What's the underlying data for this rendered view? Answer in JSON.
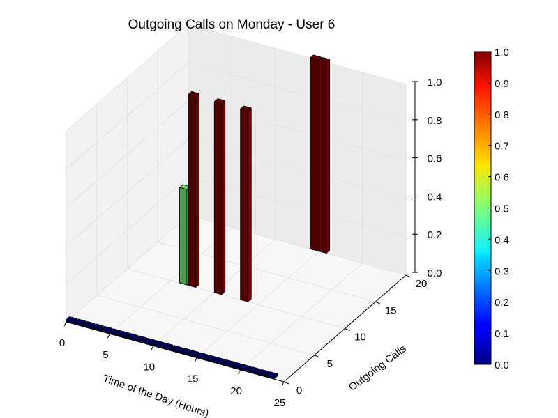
{
  "chart_data": {
    "type": "bar3d",
    "title": "Outgoing Calls on Monday - User 6",
    "xlabel": "Time of the Day (Hours)",
    "ylabel": "Outgoing Calls",
    "zlabel": "",
    "xlim": [
      0,
      25
    ],
    "ylim": [
      0,
      20
    ],
    "zlim": [
      0,
      1.0
    ],
    "x_ticks": [
      "0",
      "5",
      "10",
      "15",
      "20",
      "25"
    ],
    "y_ticks": [
      "0",
      "5",
      "10",
      "15",
      "20"
    ],
    "z_ticks": [
      "0.0",
      "0.2",
      "0.4",
      "0.6",
      "0.8",
      "1.0"
    ],
    "colormap": "jet",
    "colorbar_ticks": [
      "0.0",
      "0.1",
      "0.2",
      "0.3",
      "0.4",
      "0.5",
      "0.6",
      "0.7",
      "0.8",
      "0.9",
      "1.0"
    ],
    "grid": true,
    "bars": [
      {
        "hour": 0,
        "calls": 0,
        "value": 0.0
      },
      {
        "hour": 1,
        "calls": 0,
        "value": 0.0
      },
      {
        "hour": 2,
        "calls": 0,
        "value": 0.0
      },
      {
        "hour": 3,
        "calls": 0,
        "value": 0.0
      },
      {
        "hour": 4,
        "calls": 0,
        "value": 0.0
      },
      {
        "hour": 5,
        "calls": 0,
        "value": 0.0
      },
      {
        "hour": 6,
        "calls": 0,
        "value": 0.0
      },
      {
        "hour": 7,
        "calls": 0,
        "value": 0.0
      },
      {
        "hour": 8,
        "calls": 0,
        "value": 0.0
      },
      {
        "hour": 9,
        "calls": 0,
        "value": 0.0
      },
      {
        "hour": 10,
        "calls": 0,
        "value": 0.0
      },
      {
        "hour": 11,
        "calls": 0,
        "value": 0.0
      },
      {
        "hour": 12,
        "calls": 0,
        "value": 0.0
      },
      {
        "hour": 13,
        "calls": 0,
        "value": 0.0
      },
      {
        "hour": 14,
        "calls": 0,
        "value": 0.0
      },
      {
        "hour": 15,
        "calls": 0,
        "value": 0.0
      },
      {
        "hour": 16,
        "calls": 0,
        "value": 0.0
      },
      {
        "hour": 17,
        "calls": 0,
        "value": 0.0
      },
      {
        "hour": 18,
        "calls": 0,
        "value": 0.0
      },
      {
        "hour": 19,
        "calls": 0,
        "value": 0.0
      },
      {
        "hour": 20,
        "calls": 0,
        "value": 0.0
      },
      {
        "hour": 21,
        "calls": 0,
        "value": 0.0
      },
      {
        "hour": 22,
        "calls": 0,
        "value": 0.0
      },
      {
        "hour": 23,
        "calls": 0,
        "value": 0.0
      },
      {
        "hour": 6,
        "calls": 10,
        "value": 0.5
      },
      {
        "hour": 7,
        "calls": 10,
        "value": 1.0
      },
      {
        "hour": 10,
        "calls": 10,
        "value": 1.0
      },
      {
        "hour": 13,
        "calls": 10,
        "value": 1.0
      },
      {
        "hour": 14,
        "calls": 20,
        "value": 1.0
      },
      {
        "hour": 15,
        "calls": 20,
        "value": 1.0
      }
    ]
  }
}
